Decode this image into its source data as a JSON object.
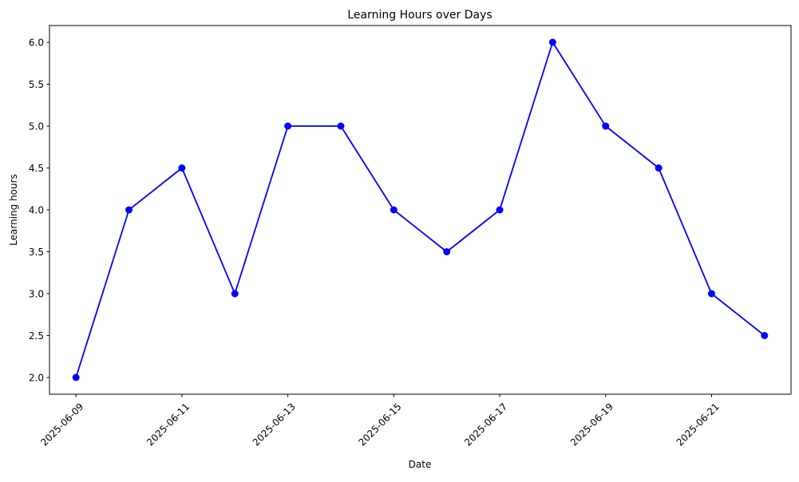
{
  "chart_data": {
    "type": "line",
    "title": "Learning Hours over Days",
    "xlabel": "Date",
    "ylabel": "Learning hours",
    "x": [
      "2025-06-09",
      "2025-06-10",
      "2025-06-11",
      "2025-06-12",
      "2025-06-13",
      "2025-06-14",
      "2025-06-15",
      "2025-06-16",
      "2025-06-17",
      "2025-06-18",
      "2025-06-19",
      "2025-06-20",
      "2025-06-21",
      "2025-06-22"
    ],
    "series": [
      {
        "values": [
          2.0,
          4.0,
          4.5,
          3.0,
          5.0,
          5.0,
          4.0,
          3.5,
          4.0,
          6.0,
          5.0,
          4.5,
          3.0,
          2.5
        ],
        "color": "#0000ff",
        "marker": "circle"
      }
    ],
    "xticks": [
      "2025-06-09",
      "2025-06-11",
      "2025-06-13",
      "2025-06-15",
      "2025-06-17",
      "2025-06-19",
      "2025-06-21"
    ],
    "yticks": [
      "2.0",
      "2.5",
      "3.0",
      "3.5",
      "4.0",
      "4.5",
      "5.0",
      "5.5",
      "6.0"
    ],
    "xlim": [
      "2025-06-08T12:00",
      "2025-06-22T12:00"
    ],
    "ylim": [
      1.8,
      6.2
    ],
    "grid": false,
    "legend": "none"
  }
}
